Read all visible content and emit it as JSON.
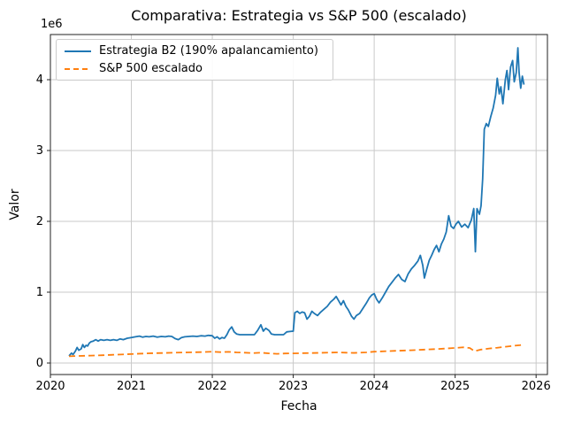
{
  "chart_data": {
    "type": "line",
    "title": "Comparativa: Estrategia vs S&P 500 (escalado)",
    "xlabel": "Fecha",
    "ylabel": "Valor",
    "offset_text": "1e6",
    "grid": true,
    "legend_position": "upper-left",
    "xlim": [
      2020.0,
      2026.14
    ],
    "ylim_e6": [
      -0.1625,
      4.6375
    ],
    "x_ticks": [
      2020,
      2021,
      2022,
      2023,
      2024,
      2025,
      2026
    ],
    "x_tick_labels": [
      "2020",
      "2021",
      "2022",
      "2023",
      "2024",
      "2025",
      "2026"
    ],
    "y_ticks_e6": [
      0,
      1,
      2,
      3,
      4
    ],
    "y_tick_labels": [
      "0",
      "1",
      "2",
      "3",
      "4"
    ],
    "colors": {
      "strategy": "#1f77b4",
      "sp500": "#ff7f0e",
      "grid": "#c9c9c9",
      "spine": "#222222"
    },
    "series": [
      {
        "name": "Estrategia B2 (190% apalancamiento)",
        "color": "#1f77b4",
        "style": "solid",
        "units": "millions",
        "points": [
          [
            2020.23,
            0.1
          ],
          [
            2020.26,
            0.14
          ],
          [
            2020.28,
            0.12
          ],
          [
            2020.31,
            0.17
          ],
          [
            2020.33,
            0.22
          ],
          [
            2020.35,
            0.18
          ],
          [
            2020.38,
            0.2
          ],
          [
            2020.4,
            0.26
          ],
          [
            2020.42,
            0.22
          ],
          [
            2020.44,
            0.25
          ],
          [
            2020.46,
            0.24
          ],
          [
            2020.48,
            0.28
          ],
          [
            2020.5,
            0.3
          ],
          [
            2020.53,
            0.31
          ],
          [
            2020.56,
            0.33
          ],
          [
            2020.59,
            0.31
          ],
          [
            2020.62,
            0.33
          ],
          [
            2020.66,
            0.32
          ],
          [
            2020.7,
            0.33
          ],
          [
            2020.74,
            0.32
          ],
          [
            2020.78,
            0.33
          ],
          [
            2020.82,
            0.32
          ],
          [
            2020.86,
            0.34
          ],
          [
            2020.9,
            0.33
          ],
          [
            2020.95,
            0.35
          ],
          [
            2021.0,
            0.36
          ],
          [
            2021.05,
            0.37
          ],
          [
            2021.1,
            0.38
          ],
          [
            2021.14,
            0.365
          ],
          [
            2021.18,
            0.375
          ],
          [
            2021.22,
            0.37
          ],
          [
            2021.27,
            0.38
          ],
          [
            2021.32,
            0.365
          ],
          [
            2021.37,
            0.375
          ],
          [
            2021.42,
            0.37
          ],
          [
            2021.46,
            0.38
          ],
          [
            2021.5,
            0.375
          ],
          [
            2021.54,
            0.345
          ],
          [
            2021.58,
            0.33
          ],
          [
            2021.62,
            0.36
          ],
          [
            2021.66,
            0.37
          ],
          [
            2021.71,
            0.375
          ],
          [
            2021.76,
            0.38
          ],
          [
            2021.81,
            0.375
          ],
          [
            2021.86,
            0.385
          ],
          [
            2021.91,
            0.38
          ],
          [
            2021.95,
            0.39
          ],
          [
            2022.0,
            0.385
          ],
          [
            2022.03,
            0.35
          ],
          [
            2022.06,
            0.37
          ],
          [
            2022.09,
            0.34
          ],
          [
            2022.12,
            0.36
          ],
          [
            2022.15,
            0.35
          ],
          [
            2022.18,
            0.4
          ],
          [
            2022.21,
            0.47
          ],
          [
            2022.24,
            0.51
          ],
          [
            2022.27,
            0.44
          ],
          [
            2022.3,
            0.41
          ],
          [
            2022.34,
            0.4
          ],
          [
            2022.4,
            0.4
          ],
          [
            2022.46,
            0.4
          ],
          [
            2022.52,
            0.4
          ],
          [
            2022.56,
            0.46
          ],
          [
            2022.6,
            0.54
          ],
          [
            2022.63,
            0.45
          ],
          [
            2022.66,
            0.49
          ],
          [
            2022.7,
            0.46
          ],
          [
            2022.73,
            0.41
          ],
          [
            2022.77,
            0.4
          ],
          [
            2022.83,
            0.4
          ],
          [
            2022.88,
            0.4
          ],
          [
            2022.92,
            0.44
          ],
          [
            2022.96,
            0.445
          ],
          [
            2023.0,
            0.45
          ],
          [
            2023.02,
            0.71
          ],
          [
            2023.05,
            0.73
          ],
          [
            2023.08,
            0.7
          ],
          [
            2023.11,
            0.72
          ],
          [
            2023.14,
            0.71
          ],
          [
            2023.17,
            0.62
          ],
          [
            2023.2,
            0.66
          ],
          [
            2023.23,
            0.73
          ],
          [
            2023.26,
            0.7
          ],
          [
            2023.3,
            0.67
          ],
          [
            2023.34,
            0.72
          ],
          [
            2023.38,
            0.76
          ],
          [
            2023.42,
            0.8
          ],
          [
            2023.46,
            0.86
          ],
          [
            2023.5,
            0.9
          ],
          [
            2023.53,
            0.94
          ],
          [
            2023.56,
            0.88
          ],
          [
            2023.59,
            0.82
          ],
          [
            2023.62,
            0.88
          ],
          [
            2023.65,
            0.8
          ],
          [
            2023.68,
            0.75
          ],
          [
            2023.72,
            0.66
          ],
          [
            2023.75,
            0.62
          ],
          [
            2023.78,
            0.67
          ],
          [
            2023.82,
            0.7
          ],
          [
            2023.86,
            0.77
          ],
          [
            2023.9,
            0.84
          ],
          [
            2023.94,
            0.92
          ],
          [
            2023.97,
            0.96
          ],
          [
            2024.0,
            0.98
          ],
          [
            2024.03,
            0.9
          ],
          [
            2024.06,
            0.85
          ],
          [
            2024.1,
            0.92
          ],
          [
            2024.14,
            1.0
          ],
          [
            2024.18,
            1.08
          ],
          [
            2024.22,
            1.14
          ],
          [
            2024.26,
            1.2
          ],
          [
            2024.3,
            1.25
          ],
          [
            2024.34,
            1.18
          ],
          [
            2024.38,
            1.15
          ],
          [
            2024.42,
            1.26
          ],
          [
            2024.46,
            1.33
          ],
          [
            2024.5,
            1.38
          ],
          [
            2024.54,
            1.44
          ],
          [
            2024.57,
            1.52
          ],
          [
            2024.6,
            1.38
          ],
          [
            2024.62,
            1.2
          ],
          [
            2024.65,
            1.33
          ],
          [
            2024.68,
            1.45
          ],
          [
            2024.71,
            1.52
          ],
          [
            2024.74,
            1.6
          ],
          [
            2024.77,
            1.66
          ],
          [
            2024.8,
            1.57
          ],
          [
            2024.83,
            1.68
          ],
          [
            2024.86,
            1.75
          ],
          [
            2024.89,
            1.85
          ],
          [
            2024.92,
            2.08
          ],
          [
            2024.95,
            1.93
          ],
          [
            2024.98,
            1.9
          ],
          [
            2025.01,
            1.96
          ],
          [
            2025.04,
            2.0
          ],
          [
            2025.08,
            1.92
          ],
          [
            2025.12,
            1.96
          ],
          [
            2025.16,
            1.91
          ],
          [
            2025.2,
            2.02
          ],
          [
            2025.23,
            2.18
          ],
          [
            2025.25,
            1.57
          ],
          [
            2025.27,
            2.18
          ],
          [
            2025.3,
            2.1
          ],
          [
            2025.32,
            2.22
          ],
          [
            2025.34,
            2.6
          ],
          [
            2025.36,
            3.3
          ],
          [
            2025.385,
            3.38
          ],
          [
            2025.41,
            3.34
          ],
          [
            2025.44,
            3.48
          ],
          [
            2025.47,
            3.6
          ],
          [
            2025.5,
            3.78
          ],
          [
            2025.52,
            4.02
          ],
          [
            2025.545,
            3.8
          ],
          [
            2025.565,
            3.9
          ],
          [
            2025.59,
            3.66
          ],
          [
            2025.62,
            4.0
          ],
          [
            2025.64,
            4.13
          ],
          [
            2025.66,
            3.86
          ],
          [
            2025.685,
            4.18
          ],
          [
            2025.71,
            4.27
          ],
          [
            2025.73,
            3.97
          ],
          [
            2025.755,
            4.1
          ],
          [
            2025.775,
            4.45
          ],
          [
            2025.79,
            4.1
          ],
          [
            2025.81,
            3.88
          ],
          [
            2025.83,
            4.05
          ],
          [
            2025.85,
            3.93
          ]
        ]
      },
      {
        "name": "S&P 500 escalado",
        "color": "#ff7f0e",
        "style": "dashed",
        "units": "millions",
        "points": [
          [
            2020.23,
            0.095
          ],
          [
            2020.35,
            0.1
          ],
          [
            2020.5,
            0.105
          ],
          [
            2020.65,
            0.11
          ],
          [
            2020.8,
            0.118
          ],
          [
            2020.95,
            0.124
          ],
          [
            2021.1,
            0.132
          ],
          [
            2021.25,
            0.138
          ],
          [
            2021.4,
            0.142
          ],
          [
            2021.55,
            0.147
          ],
          [
            2021.7,
            0.15
          ],
          [
            2021.85,
            0.154
          ],
          [
            2022.0,
            0.16
          ],
          [
            2022.1,
            0.154
          ],
          [
            2022.2,
            0.158
          ],
          [
            2022.3,
            0.15
          ],
          [
            2022.4,
            0.146
          ],
          [
            2022.5,
            0.14
          ],
          [
            2022.6,
            0.146
          ],
          [
            2022.7,
            0.136
          ],
          [
            2022.8,
            0.13
          ],
          [
            2022.9,
            0.135
          ],
          [
            2023.0,
            0.136
          ],
          [
            2023.15,
            0.14
          ],
          [
            2023.3,
            0.143
          ],
          [
            2023.45,
            0.147
          ],
          [
            2023.55,
            0.15
          ],
          [
            2023.65,
            0.146
          ],
          [
            2023.75,
            0.143
          ],
          [
            2023.9,
            0.15
          ],
          [
            2024.0,
            0.16
          ],
          [
            2024.15,
            0.167
          ],
          [
            2024.3,
            0.174
          ],
          [
            2024.45,
            0.18
          ],
          [
            2024.6,
            0.188
          ],
          [
            2024.75,
            0.196
          ],
          [
            2024.9,
            0.206
          ],
          [
            2025.0,
            0.213
          ],
          [
            2025.1,
            0.222
          ],
          [
            2025.18,
            0.212
          ],
          [
            2025.24,
            0.168
          ],
          [
            2025.32,
            0.19
          ],
          [
            2025.42,
            0.205
          ],
          [
            2025.52,
            0.216
          ],
          [
            2025.62,
            0.23
          ],
          [
            2025.72,
            0.243
          ],
          [
            2025.8,
            0.252
          ],
          [
            2025.85,
            0.262
          ]
        ]
      }
    ]
  }
}
